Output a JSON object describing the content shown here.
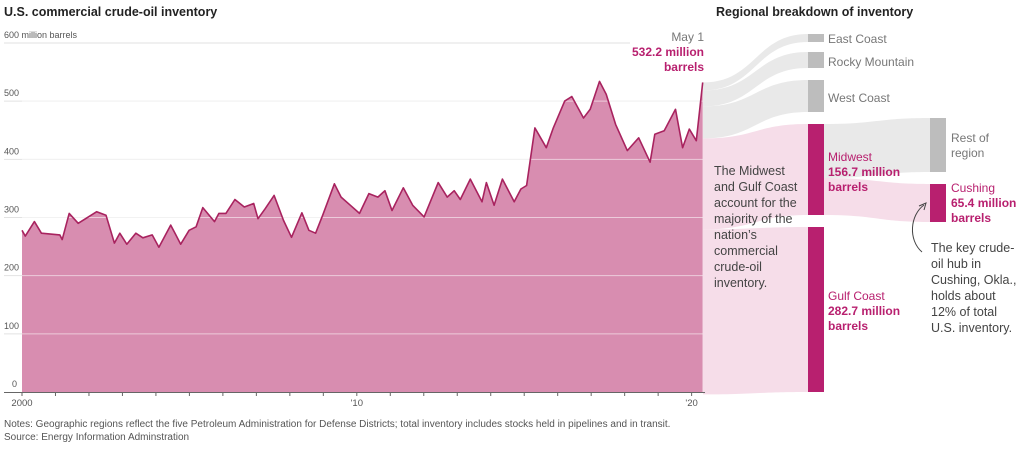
{
  "left_title": "U.S. commercial crude-oil inventory",
  "right_title": "Regional breakdown of inventory",
  "chart_data": [
    {
      "type": "area",
      "title": "U.S. commercial crude-oil inventory",
      "ylabel": "600 million barrels",
      "ylim": [
        0,
        600
      ],
      "yticks": [
        "600 million barrels",
        "500",
        "400",
        "300",
        "200",
        "100",
        "0"
      ],
      "ytick_values": [
        600,
        500,
        400,
        300,
        200,
        100,
        0
      ],
      "xlim": [
        2000,
        2020.34
      ],
      "xticks": [
        "2000",
        "'10",
        "'20"
      ],
      "xtick_values": [
        2000,
        2010,
        2020
      ],
      "grid": true,
      "annotation": {
        "date": "May 1",
        "value_label": "532.2 million barrels"
      },
      "x": [
        2000.0,
        2000.1,
        2000.37,
        2000.58,
        2001.13,
        2001.2,
        2001.41,
        2001.68,
        2002.23,
        2002.51,
        2002.76,
        2002.92,
        2003.13,
        2003.4,
        2003.61,
        2003.89,
        2004.09,
        2004.44,
        2004.57,
        2004.74,
        2004.99,
        2005.2,
        2005.4,
        2005.75,
        2005.88,
        2006.09,
        2006.36,
        2006.64,
        2006.92,
        2007.05,
        2007.26,
        2007.53,
        2007.81,
        2008.05,
        2008.36,
        2008.57,
        2008.77,
        2008.98,
        2009.33,
        2009.53,
        2009.81,
        2010.08,
        2010.36,
        2010.63,
        2010.84,
        2011.05,
        2011.39,
        2011.67,
        2012.01,
        2012.43,
        2012.7,
        2012.91,
        2013.09,
        2013.39,
        2013.74,
        2013.87,
        2014.1,
        2014.35,
        2014.7,
        2014.9,
        2015.07,
        2015.32,
        2015.66,
        2015.87,
        2016.21,
        2016.42,
        2016.77,
        2016.97,
        2017.25,
        2017.45,
        2017.73,
        2018.08,
        2018.42,
        2018.76,
        2018.9,
        2019.18,
        2019.52,
        2019.73,
        2019.93,
        2020.14,
        2020.33
      ],
      "y": [
        278,
        268,
        293,
        273,
        270,
        262,
        307,
        290,
        310,
        304,
        256,
        273,
        254,
        273,
        265,
        270,
        249,
        287,
        273,
        254,
        278,
        284,
        317,
        293,
        307,
        307,
        331,
        318,
        324,
        298,
        315,
        338,
        295,
        266,
        308,
        278,
        273,
        304,
        358,
        335,
        321,
        307,
        341,
        335,
        346,
        312,
        351,
        321,
        301,
        360,
        335,
        346,
        331,
        366,
        327,
        360,
        321,
        366,
        327,
        349,
        355,
        454,
        420,
        454,
        500,
        508,
        471,
        486,
        534,
        512,
        460,
        415,
        437,
        395,
        443,
        449,
        486,
        420,
        452,
        432,
        532.2
      ]
    },
    {
      "type": "sankey",
      "title": "Regional breakdown of inventory",
      "unit": "million barrels",
      "nodes": [
        {
          "name": "East Coast",
          "color": "#bdbdbd"
        },
        {
          "name": "Rocky Mountain",
          "color": "#bdbdbd"
        },
        {
          "name": "West Coast",
          "color": "#bdbdbd"
        },
        {
          "name": "Midwest",
          "value_label": "156.7 million barrels",
          "value": 156.7,
          "color": "#b8206f"
        },
        {
          "name": "Gulf Coast",
          "value_label": "282.7 million barrels",
          "value": 282.7,
          "color": "#b8206f"
        },
        {
          "name": "Rest of region",
          "color": "#bdbdbd"
        },
        {
          "name": "Cushing",
          "value_label": "65.4 million barrels",
          "value": 65.4,
          "color": "#b8206f"
        }
      ]
    }
  ],
  "annotations": {
    "majority": "The Midwest and Gulf Coast account for the majority of the nation’s commercial crude-oil inventory.",
    "cushing": "The key crude-oil hub in Cushing, Okla., holds about 12% of total U.S. inventory."
  },
  "notes": "Notes: Geographic regions reflect the five Petroleum Administration for Defense Districts; total inventory includes stocks held in pipelines and in transit.",
  "source": "Source: Energy Information Adminstration",
  "colors": {
    "area": "#d88db0",
    "line": "#a8235f",
    "accent": "#b8206f",
    "grey_flow": "#e9e9e9",
    "pink_flow": "#f6dde9"
  }
}
